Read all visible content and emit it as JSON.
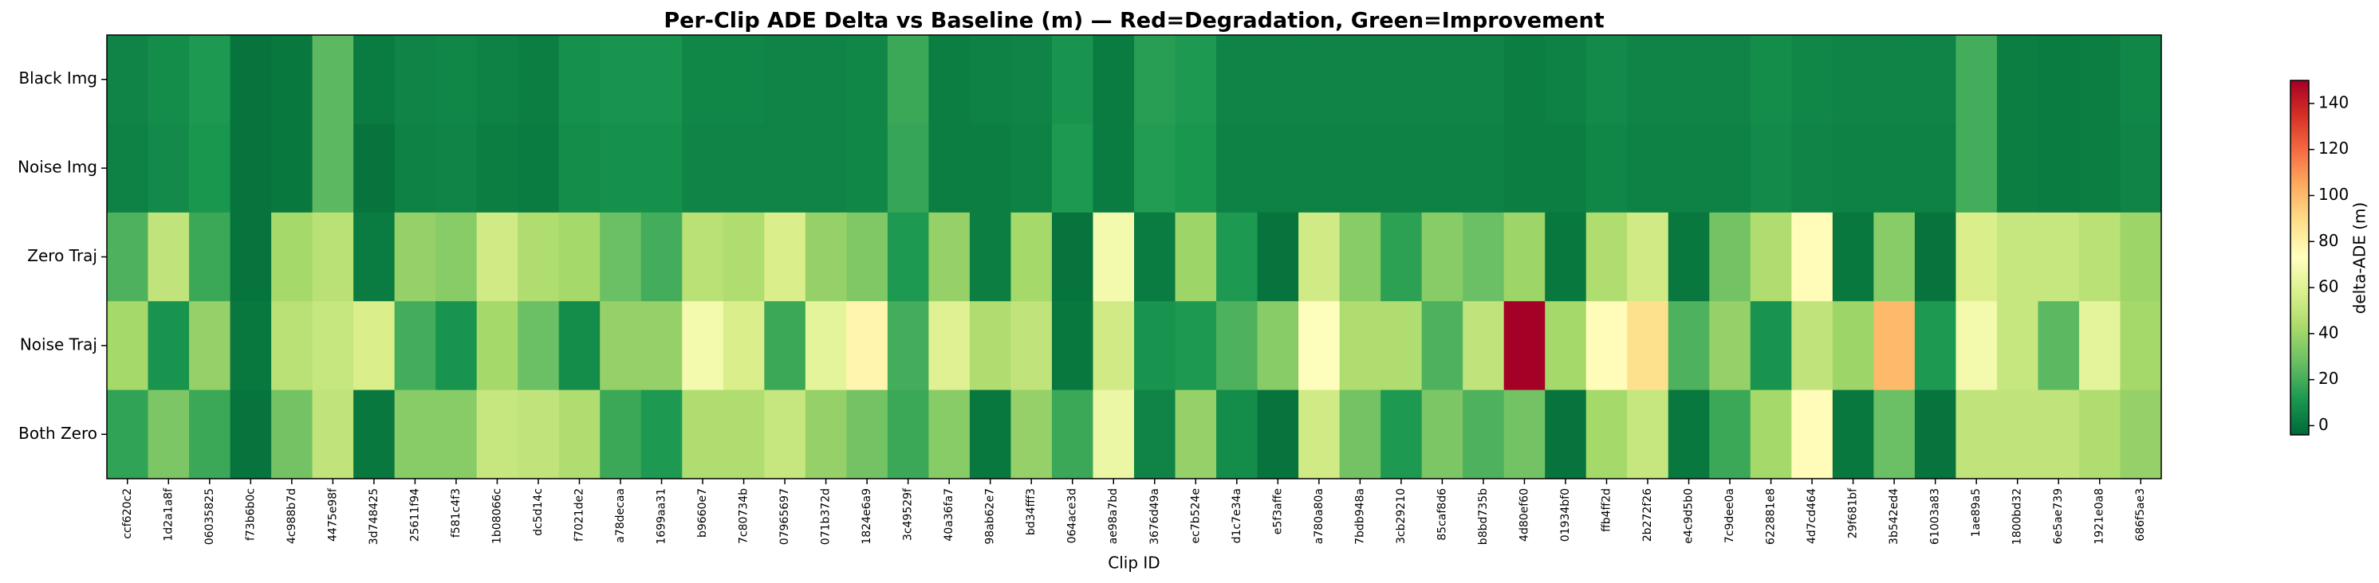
{
  "chart_data": {
    "type": "heatmap",
    "title": "Per-Clip ADE Delta vs Baseline (m) — Red=Degradation, Green=Improvement",
    "xlabel": "Clip ID",
    "colorbar_label": "delta-ADE (m)",
    "colormap": "RdYlGn_r",
    "categories": [
      "ccf620c2",
      "1d2a1a8f",
      "06035825",
      "f73b6b0c",
      "4c988b7d",
      "4475e98f",
      "3d748425",
      "25611f94",
      "f581c4f3",
      "1b08066c",
      "dc5d14c",
      "f7021de2",
      "a78decaa",
      "1699aa31",
      "b9660e7",
      "7c80734b",
      "07965697",
      "071b372d",
      "1824e6a9",
      "3c49529f",
      "40a36fa7",
      "98ab62e7",
      "bd34fff3",
      "064ace3d",
      "ae98a7bd",
      "3676d49a",
      "ec7b524e",
      "d1c7e34a",
      "e5f3affe",
      "a780a80a",
      "7bdb948a",
      "3cb29210",
      "85caf8d6",
      "b8bd735b",
      "4d80ef60",
      "01934bf0",
      "ffb4ff2d",
      "2b272f26",
      "e4c9d5b0",
      "7c9dee0a",
      "622881e8",
      "4d7cd464",
      "29f681bf",
      "3b542ed4",
      "61003a83",
      "1ae89a5",
      "1800bd32",
      "6e5ae739",
      "1921e0a8",
      "686f5ae3"
    ],
    "rows": [
      "Black Img",
      "Noise Img",
      "Zero Traj",
      "Noise Traj",
      "Both Zero"
    ],
    "values": [
      [
        5,
        8,
        12,
        0,
        1,
        25,
        2,
        5,
        6,
        4,
        3,
        9,
        10,
        10,
        6,
        6,
        5,
        5,
        6,
        18,
        3,
        4,
        5,
        10,
        2,
        14,
        12,
        5,
        5,
        5,
        5,
        5,
        5,
        5,
        3,
        4,
        7,
        5,
        5,
        5,
        8,
        6,
        5,
        5,
        5,
        20,
        3,
        2,
        3,
        6
      ],
      [
        4,
        7,
        11,
        0,
        1,
        25,
        0,
        4,
        5,
        3,
        2,
        8,
        9,
        9,
        5,
        5,
        5,
        5,
        6,
        17,
        3,
        3,
        4,
        12,
        2,
        13,
        11,
        4,
        4,
        4,
        4,
        4,
        4,
        4,
        3,
        3,
        6,
        4,
        4,
        4,
        7,
        5,
        4,
        4,
        4,
        20,
        3,
        2,
        3,
        5
      ],
      [
        22,
        50,
        18,
        0,
        42,
        48,
        2,
        38,
        35,
        55,
        45,
        42,
        28,
        20,
        48,
        45,
        58,
        38,
        33,
        12,
        38,
        3,
        42,
        0,
        68,
        2,
        40,
        12,
        0,
        55,
        35,
        15,
        35,
        28,
        40,
        1,
        45,
        55,
        1,
        30,
        45,
        75,
        1,
        35,
        0,
        58,
        52,
        52,
        48,
        40
      ],
      [
        42,
        10,
        38,
        1,
        48,
        52,
        58,
        20,
        10,
        42,
        28,
        8,
        38,
        38,
        68,
        58,
        18,
        62,
        78,
        20,
        60,
        45,
        50,
        1,
        55,
        10,
        12,
        22,
        35,
        72,
        45,
        45,
        22,
        50,
        150,
        42,
        75,
        88,
        22,
        38,
        10,
        50,
        40,
        100,
        12,
        68,
        52,
        25,
        62,
        42
      ],
      [
        16,
        32,
        18,
        0,
        30,
        50,
        1,
        35,
        35,
        52,
        50,
        45,
        18,
        12,
        45,
        45,
        52,
        38,
        30,
        18,
        35,
        1,
        38,
        18,
        65,
        5,
        38,
        8,
        0,
        55,
        30,
        12,
        32,
        22,
        30,
        0,
        42,
        52,
        1,
        18,
        42,
        75,
        1,
        28,
        0,
        50,
        50,
        50,
        45,
        38
      ]
    ],
    "zlim": [
      -4,
      150
    ],
    "zticks": [
      0,
      20,
      40,
      60,
      80,
      100,
      120,
      140
    ]
  }
}
